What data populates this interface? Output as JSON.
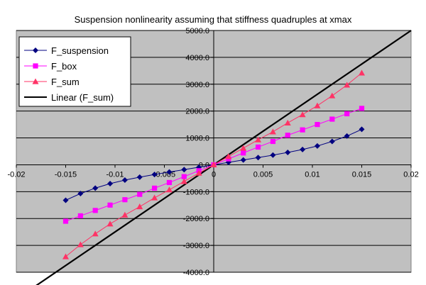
{
  "chart_data": {
    "type": "scatter",
    "title": "Suspension nonlinearity assuming that stiffness quadruples at xmax",
    "xlabel": "",
    "ylabel": "",
    "xlim": [
      -0.02,
      0.02
    ],
    "ylim": [
      -4000,
      5000
    ],
    "x_ticks": [
      -0.02,
      -0.015,
      -0.01,
      -0.005,
      0,
      0.005,
      0.01,
      0.015,
      0.02
    ],
    "y_ticks": [
      -4000,
      -3000,
      -2000,
      -1000,
      0,
      1000,
      2000,
      3000,
      4000,
      5000
    ],
    "x_tick_labels": [
      "-0.02",
      "-0.015",
      "-0.01",
      "-0.005",
      "0",
      "0.005",
      "0.01",
      "0.015",
      "0.02"
    ],
    "y_tick_labels": [
      "-4000.0",
      "-3000.0",
      "-2000.0",
      "-1000.0",
      "0.0",
      "1000.0",
      "2000.0",
      "3000.0",
      "4000.0",
      "5000.0"
    ],
    "grid": true,
    "legend_position": "top-left",
    "plot_background": "#c0c0c0",
    "x": [
      -0.015,
      -0.0135,
      -0.012,
      -0.0105,
      -0.009,
      -0.0075,
      -0.006,
      -0.0045,
      -0.003,
      -0.0015,
      0,
      0.0015,
      0.003,
      0.0045,
      0.006,
      0.0075,
      0.009,
      0.0105,
      0.012,
      0.0135,
      0.015
    ],
    "series": [
      {
        "name": "F_suspension",
        "color": "#000080",
        "marker": "diamond",
        "values": [
          -1320,
          -1070,
          -870,
          -700,
          -570,
          -460,
          -360,
          -270,
          -180,
          -90,
          0,
          90,
          180,
          270,
          360,
          460,
          570,
          700,
          870,
          1070,
          1320
        ]
      },
      {
        "name": "F_box",
        "color": "#ff00ff",
        "marker": "square",
        "values": [
          -2100,
          -1900,
          -1700,
          -1500,
          -1300,
          -1100,
          -870,
          -660,
          -440,
          -220,
          0,
          220,
          440,
          660,
          870,
          1100,
          1300,
          1500,
          1700,
          1900,
          2100
        ]
      },
      {
        "name": "F_sum",
        "color": "#ff3366",
        "marker": "triangle",
        "values": [
          -3420,
          -2970,
          -2570,
          -2200,
          -1870,
          -1560,
          -1230,
          -930,
          -620,
          -310,
          0,
          310,
          620,
          930,
          1230,
          1560,
          1870,
          2200,
          2570,
          2970,
          3420
        ]
      }
    ],
    "trendline": {
      "name": "Linear (F_sum)",
      "color": "#000000",
      "slope": 250000,
      "intercept": 0,
      "x_range": [
        -0.018,
        0.02
      ]
    },
    "legend_entries": [
      "F_suspension",
      "F_box",
      "F_sum",
      "Linear (F_sum)"
    ]
  }
}
